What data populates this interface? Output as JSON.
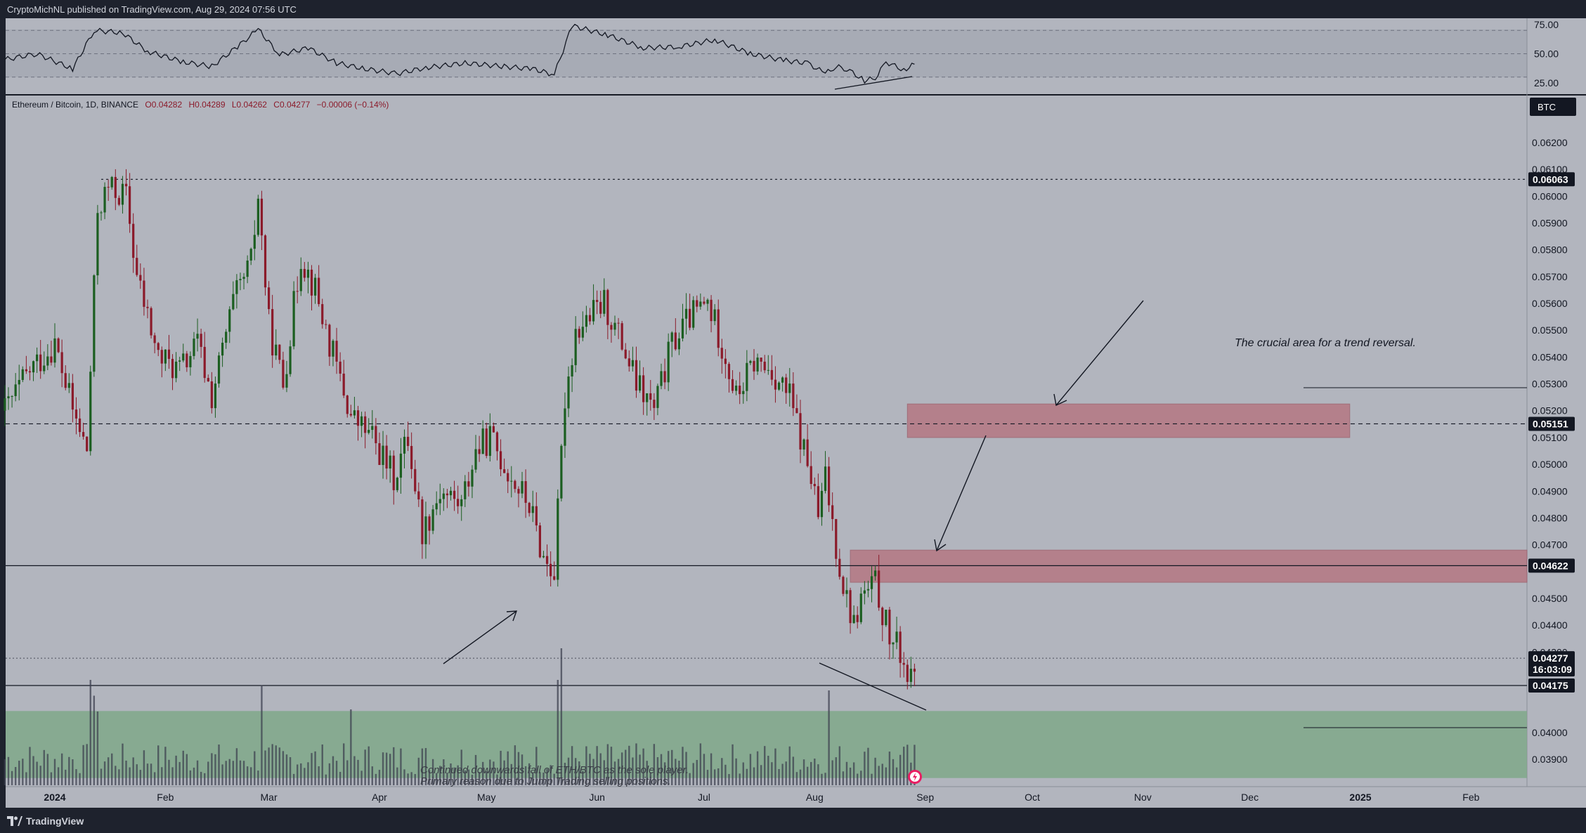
{
  "header": {
    "published_text": "CryptoMichNL published on TradingView.com, Aug 29, 2024 07:56 UTC"
  },
  "footer": {
    "brand": "TradingView"
  },
  "colors": {
    "up": "#1b5e20",
    "down": "#8b1a2a",
    "pane_bg": "#b2b5be",
    "resistance_zone": "#b5737f",
    "support_zone": "#7fa88a",
    "dark_frame": "#1e222d"
  },
  "legend": {
    "symbol": "Ethereum / Bitcoin, 1D, BINANCE",
    "open": "O0.04282",
    "high": "H0.04289",
    "low": "L0.04262",
    "close": "C0.04277",
    "change": "−0.00006 (−0.14%)"
  },
  "currency_button": "BTC",
  "rsi_axis": {
    "ticks": [
      "75.00",
      "50.00",
      "25.00"
    ]
  },
  "price_axis": {
    "ticks": [
      "0.06200",
      "0.06100",
      "0.06000",
      "0.05900",
      "0.05800",
      "0.05700",
      "0.05600",
      "0.05500",
      "0.05400",
      "0.05300",
      "0.05200",
      "0.05100",
      "0.05000",
      "0.04900",
      "0.04800",
      "0.04700",
      "0.04500",
      "0.04400",
      "0.04300",
      "0.04000",
      "0.03900"
    ],
    "tags": [
      {
        "value": "0.06063",
        "kind": "level"
      },
      {
        "value": "0.05151",
        "kind": "level"
      },
      {
        "value": "0.04622",
        "kind": "level"
      },
      {
        "value": "0.04277",
        "kind": "current"
      },
      {
        "value": "0.04175",
        "kind": "level"
      }
    ],
    "countdown": "16:03:09"
  },
  "time_axis": {
    "labels": [
      "2024",
      "Feb",
      "Mar",
      "Apr",
      "May",
      "Jun",
      "Jul",
      "Aug",
      "Sep",
      "Oct",
      "Nov",
      "Dec",
      "2025",
      "Feb"
    ]
  },
  "annotations": {
    "trend_note": "The crucial area for a trend reversal.",
    "volume_note_line1": "Continued downwards fall of ETH/BTC as the sole player.",
    "volume_note_line2": "Primary reason due to Jump Trading selling positions."
  },
  "chart_data": {
    "type": "candlestick",
    "symbol": "Ethereum / Bitcoin",
    "timeframe": "1D",
    "exchange": "BINANCE",
    "yrange": [
      0.0383,
      0.064
    ],
    "levels": [
      0.06063,
      0.05151,
      0.04622,
      0.04175
    ],
    "zones": [
      {
        "from": 0.051,
        "to": 0.05225,
        "start": "2024-08-27",
        "end": "2024-12-29",
        "kind": "resistance"
      },
      {
        "from": 0.0456,
        "to": 0.0468,
        "start": "2024-08-11",
        "end": "2025-02-28",
        "kind": "resistance"
      },
      {
        "from": 0.0383,
        "to": 0.0408,
        "start": "2023-12-18",
        "end": "2025-02-28",
        "kind": "support"
      }
    ],
    "close_path": [
      {
        "date": "2023-12-18",
        "close": 0.052
      },
      {
        "date": "2023-12-25",
        "close": 0.0535
      },
      {
        "date": "2024-01-01",
        "close": 0.0545
      },
      {
        "date": "2024-01-06",
        "close": 0.052
      },
      {
        "date": "2024-01-10",
        "close": 0.0505
      },
      {
        "date": "2024-01-13",
        "close": 0.0595
      },
      {
        "date": "2024-01-16",
        "close": 0.0603
      },
      {
        "date": "2024-01-21",
        "close": 0.06
      },
      {
        "date": "2024-01-24",
        "close": 0.057
      },
      {
        "date": "2024-01-30",
        "close": 0.054
      },
      {
        "date": "2024-02-05",
        "close": 0.0535
      },
      {
        "date": "2024-02-10",
        "close": 0.0545
      },
      {
        "date": "2024-02-14",
        "close": 0.0525
      },
      {
        "date": "2024-02-20",
        "close": 0.056
      },
      {
        "date": "2024-02-25",
        "close": 0.0575
      },
      {
        "date": "2024-02-27",
        "close": 0.06
      },
      {
        "date": "2024-03-01",
        "close": 0.0552
      },
      {
        "date": "2024-03-05",
        "close": 0.053
      },
      {
        "date": "2024-03-10",
        "close": 0.0578
      },
      {
        "date": "2024-03-14",
        "close": 0.0565
      },
      {
        "date": "2024-03-18",
        "close": 0.0545
      },
      {
        "date": "2024-03-24",
        "close": 0.0518
      },
      {
        "date": "2024-03-30",
        "close": 0.051
      },
      {
        "date": "2024-04-05",
        "close": 0.0495
      },
      {
        "date": "2024-04-09",
        "close": 0.051
      },
      {
        "date": "2024-04-13",
        "close": 0.0475
      },
      {
        "date": "2024-04-18",
        "close": 0.049
      },
      {
        "date": "2024-04-24",
        "close": 0.0485
      },
      {
        "date": "2024-04-28",
        "close": 0.0505
      },
      {
        "date": "2024-05-02",
        "close": 0.051
      },
      {
        "date": "2024-05-08",
        "close": 0.0495
      },
      {
        "date": "2024-05-13",
        "close": 0.0485
      },
      {
        "date": "2024-05-17",
        "close": 0.0465
      },
      {
        "date": "2024-05-20",
        "close": 0.046
      },
      {
        "date": "2024-05-23",
        "close": 0.0525
      },
      {
        "date": "2024-05-26",
        "close": 0.055
      },
      {
        "date": "2024-05-30",
        "close": 0.0555
      },
      {
        "date": "2024-06-03",
        "close": 0.056
      },
      {
        "date": "2024-06-08",
        "close": 0.0545
      },
      {
        "date": "2024-06-12",
        "close": 0.053
      },
      {
        "date": "2024-06-17",
        "close": 0.052
      },
      {
        "date": "2024-06-22",
        "close": 0.0545
      },
      {
        "date": "2024-06-27",
        "close": 0.0555
      },
      {
        "date": "2024-07-02",
        "close": 0.056
      },
      {
        "date": "2024-07-06",
        "close": 0.0545
      },
      {
        "date": "2024-07-10",
        "close": 0.0525
      },
      {
        "date": "2024-07-15",
        "close": 0.0538
      },
      {
        "date": "2024-07-20",
        "close": 0.0535
      },
      {
        "date": "2024-07-25",
        "close": 0.0525
      },
      {
        "date": "2024-07-28",
        "close": 0.051
      },
      {
        "date": "2024-07-31",
        "close": 0.0495
      },
      {
        "date": "2024-08-02",
        "close": 0.048
      },
      {
        "date": "2024-08-04",
        "close": 0.0495
      },
      {
        "date": "2024-08-07",
        "close": 0.047
      },
      {
        "date": "2024-08-09",
        "close": 0.0455
      },
      {
        "date": "2024-08-12",
        "close": 0.044
      },
      {
        "date": "2024-08-14",
        "close": 0.045
      },
      {
        "date": "2024-08-18",
        "close": 0.0455
      },
      {
        "date": "2024-08-22",
        "close": 0.0435
      },
      {
        "date": "2024-08-25",
        "close": 0.043
      },
      {
        "date": "2024-08-28",
        "close": 0.0418
      },
      {
        "date": "2024-08-29",
        "close": 0.04277
      }
    ],
    "rsi": {
      "range": [
        10,
        80
      ],
      "levels": [
        70,
        50,
        30
      ],
      "values": [
        {
          "date": "2023-12-18",
          "value": 45
        },
        {
          "date": "2023-12-27",
          "value": 50
        },
        {
          "date": "2024-01-06",
          "value": 37
        },
        {
          "date": "2024-01-12",
          "value": 70
        },
        {
          "date": "2024-01-20",
          "value": 68
        },
        {
          "date": "2024-01-27",
          "value": 52
        },
        {
          "date": "2024-02-06",
          "value": 43
        },
        {
          "date": "2024-02-14",
          "value": 39
        },
        {
          "date": "2024-02-22",
          "value": 58
        },
        {
          "date": "2024-02-27",
          "value": 71
        },
        {
          "date": "2024-03-04",
          "value": 49
        },
        {
          "date": "2024-03-12",
          "value": 55
        },
        {
          "date": "2024-03-20",
          "value": 42
        },
        {
          "date": "2024-03-28",
          "value": 37
        },
        {
          "date": "2024-04-06",
          "value": 33
        },
        {
          "date": "2024-04-14",
          "value": 38
        },
        {
          "date": "2024-04-25",
          "value": 42
        },
        {
          "date": "2024-05-06",
          "value": 39
        },
        {
          "date": "2024-05-14",
          "value": 37
        },
        {
          "date": "2024-05-20",
          "value": 32
        },
        {
          "date": "2024-05-25",
          "value": 74
        },
        {
          "date": "2024-06-04",
          "value": 66
        },
        {
          "date": "2024-06-14",
          "value": 55
        },
        {
          "date": "2024-06-24",
          "value": 56
        },
        {
          "date": "2024-07-04",
          "value": 62
        },
        {
          "date": "2024-07-14",
          "value": 50
        },
        {
          "date": "2024-07-24",
          "value": 44
        },
        {
          "date": "2024-07-30",
          "value": 42
        },
        {
          "date": "2024-08-04",
          "value": 33
        },
        {
          "date": "2024-08-07",
          "value": 39
        },
        {
          "date": "2024-08-10",
          "value": 37
        },
        {
          "date": "2024-08-15",
          "value": 27
        },
        {
          "date": "2024-08-18",
          "value": 29
        },
        {
          "date": "2024-08-21",
          "value": 43
        },
        {
          "date": "2024-08-26",
          "value": 36
        },
        {
          "date": "2024-08-29",
          "value": 41
        }
      ]
    },
    "volume_spikes": [
      {
        "date": "2024-01-11",
        "level": 1.0
      },
      {
        "date": "2024-01-12",
        "level": 0.85
      },
      {
        "date": "2024-01-13",
        "level": 0.7
      },
      {
        "date": "2024-02-28",
        "level": 0.95
      },
      {
        "date": "2024-03-24",
        "level": 0.72
      },
      {
        "date": "2024-05-21",
        "level": 1.0
      },
      {
        "date": "2024-05-22",
        "level": 1.3
      },
      {
        "date": "2024-08-05",
        "level": 0.9
      }
    ]
  }
}
